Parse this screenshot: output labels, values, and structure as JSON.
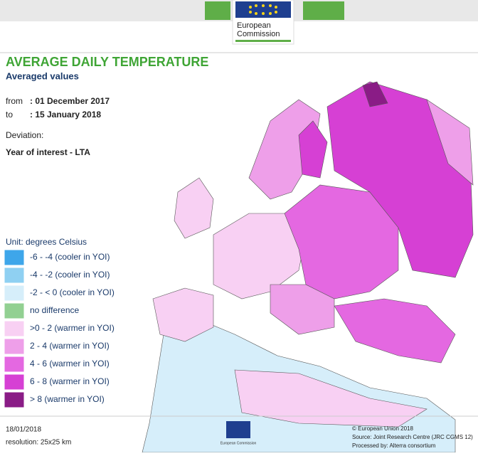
{
  "header": {
    "logo_line1": "European",
    "logo_line2": "Commission"
  },
  "title": "AVERAGE DAILY TEMPERATURE",
  "subtitle": "Averaged values",
  "period": {
    "from_label": "from",
    "from": ": 01 December 2017",
    "to_label": "to",
    "to": ": 15 January 2018"
  },
  "deviation_label": "Deviation:",
  "deviation": "Year of interest - LTA",
  "legend": {
    "unit": "Unit: degrees Celsius",
    "items": [
      {
        "label": "-6 - -4 (cooler in YOI)",
        "color": "#3ea6ea"
      },
      {
        "label": "-4 - -2 (cooler in YOI)",
        "color": "#8fd0f2"
      },
      {
        "label": "-2 - < 0 (cooler in YOI)",
        "color": "#d6eefa"
      },
      {
        "label": "no difference",
        "color": "#92d092"
      },
      {
        "label": ">0 - 2 (warmer in YOI)",
        "color": "#f8d0f3"
      },
      {
        "label": "2 - 4 (warmer in YOI)",
        "color": "#ee9fe9"
      },
      {
        "label": "4 - 6 (warmer in YOI)",
        "color": "#e468e1"
      },
      {
        "label": "6 - 8 (warmer in YOI)",
        "color": "#d640d4"
      },
      {
        "label": "> 8 (warmer in YOI)",
        "color": "#8a1c86"
      }
    ]
  },
  "footer": {
    "date": "18/01/2018",
    "resolution": "resolution: 25x25 km",
    "logo_text": "European Commission",
    "copyright": "© European Union 2018",
    "source": "Source: Joint Research Centre (JRC CGMS 12)",
    "processed": "Processed by: Alterra consortium"
  }
}
